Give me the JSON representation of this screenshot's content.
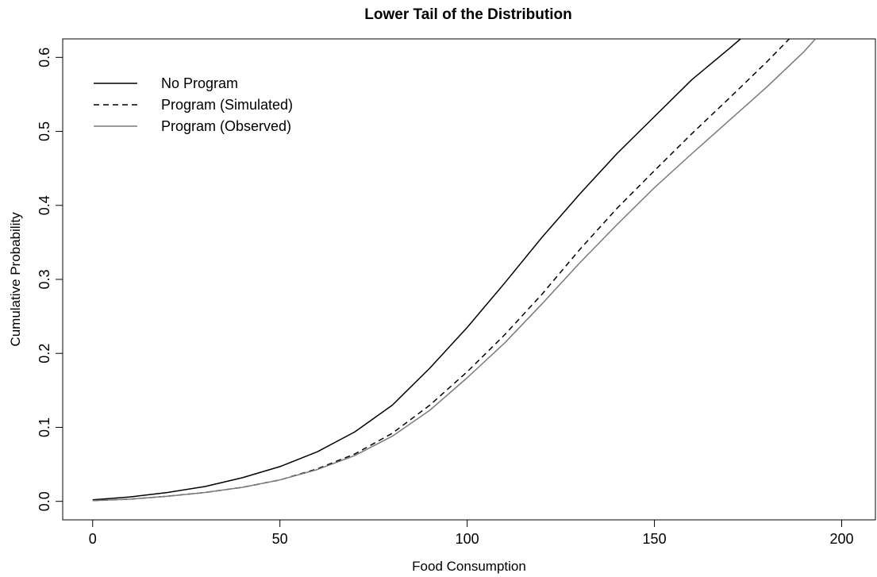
{
  "chart_data": {
    "type": "line",
    "title": "Lower Tail of the Distribution",
    "xlabel": "Food Consumption",
    "ylabel": "Cumulative Probability",
    "xlim": [
      -8,
      209
    ],
    "ylim": [
      -0.025,
      0.625
    ],
    "x_ticks": [
      0,
      50,
      100,
      150,
      200
    ],
    "x_tick_labels": [
      "0",
      "50",
      "100",
      "150",
      "200"
    ],
    "y_ticks": [
      0.0,
      0.1,
      0.2,
      0.3,
      0.4,
      0.5,
      0.6
    ],
    "y_tick_labels": [
      "0.0",
      "0.1",
      "0.2",
      "0.3",
      "0.4",
      "0.5",
      "0.6"
    ],
    "grid": false,
    "legend_position": "top-left",
    "series": [
      {
        "name": "No Program",
        "color": "#000000",
        "line_style": "solid",
        "x": [
          0,
          10,
          20,
          30,
          40,
          50,
          60,
          70,
          80,
          90,
          100,
          110,
          120,
          130,
          140,
          150,
          160,
          170,
          173
        ],
        "y": [
          0.002,
          0.006,
          0.012,
          0.02,
          0.032,
          0.047,
          0.067,
          0.094,
          0.13,
          0.18,
          0.235,
          0.295,
          0.357,
          0.415,
          0.47,
          0.52,
          0.57,
          0.612,
          0.625
        ]
      },
      {
        "name": "Program (Simulated)",
        "color": "#000000",
        "line_style": "dashed",
        "x": [
          0,
          10,
          20,
          30,
          40,
          50,
          60,
          70,
          80,
          90,
          100,
          110,
          120,
          130,
          140,
          150,
          160,
          170,
          180,
          186
        ],
        "y": [
          0.001,
          0.003,
          0.007,
          0.012,
          0.019,
          0.029,
          0.044,
          0.064,
          0.092,
          0.13,
          0.175,
          0.225,
          0.28,
          0.34,
          0.396,
          0.447,
          0.497,
          0.545,
          0.594,
          0.625
        ]
      },
      {
        "name": "Program (Observed)",
        "color": "#7a7a7a",
        "line_style": "solid",
        "x": [
          0,
          10,
          20,
          30,
          40,
          50,
          60,
          70,
          80,
          90,
          100,
          110,
          120,
          130,
          140,
          150,
          160,
          170,
          180,
          190,
          193
        ],
        "y": [
          0.001,
          0.003,
          0.007,
          0.012,
          0.019,
          0.029,
          0.043,
          0.062,
          0.088,
          0.123,
          0.167,
          0.214,
          0.267,
          0.322,
          0.374,
          0.424,
          0.47,
          0.515,
          0.56,
          0.608,
          0.625
        ]
      }
    ]
  }
}
